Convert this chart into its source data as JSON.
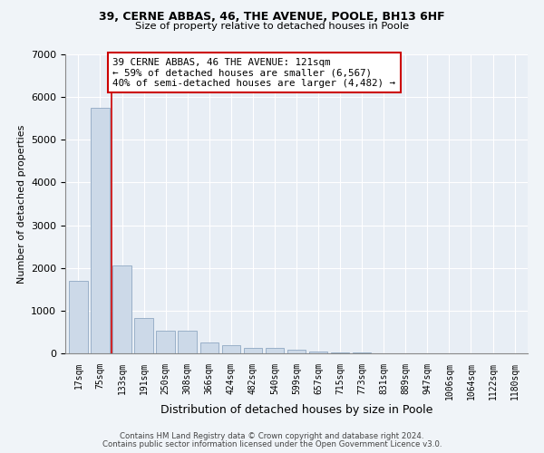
{
  "title1": "39, CERNE ABBAS, 46, THE AVENUE, POOLE, BH13 6HF",
  "title2": "Size of property relative to detached houses in Poole",
  "xlabel": "Distribution of detached houses by size in Poole",
  "ylabel": "Number of detached properties",
  "categories": [
    "17sqm",
    "75sqm",
    "133sqm",
    "191sqm",
    "250sqm",
    "308sqm",
    "366sqm",
    "424sqm",
    "482sqm",
    "540sqm",
    "599sqm",
    "657sqm",
    "715sqm",
    "773sqm",
    "831sqm",
    "889sqm",
    "947sqm",
    "1006sqm",
    "1064sqm",
    "1122sqm",
    "1180sqm"
  ],
  "values": [
    1700,
    5750,
    2050,
    820,
    540,
    540,
    250,
    200,
    130,
    120,
    75,
    50,
    28,
    12,
    5,
    3,
    2,
    2,
    1,
    1,
    1
  ],
  "bar_color": "#ccd9e8",
  "bar_edge_color": "#9ab0c8",
  "property_line_color": "#cc0000",
  "annotation_text": "39 CERNE ABBAS, 46 THE AVENUE: 121sqm\n← 59% of detached houses are smaller (6,567)\n40% of semi-detached houses are larger (4,482) →",
  "annotation_box_color": "#ffffff",
  "annotation_box_edge": "#cc0000",
  "ylim": [
    0,
    7000
  ],
  "yticks": [
    0,
    1000,
    2000,
    3000,
    4000,
    5000,
    6000,
    7000
  ],
  "footer1": "Contains HM Land Registry data © Crown copyright and database right 2024.",
  "footer2": "Contains public sector information licensed under the Open Government Licence v3.0.",
  "bg_color": "#f0f4f8",
  "plot_bg_color": "#e8eef5",
  "grid_color": "#ffffff"
}
